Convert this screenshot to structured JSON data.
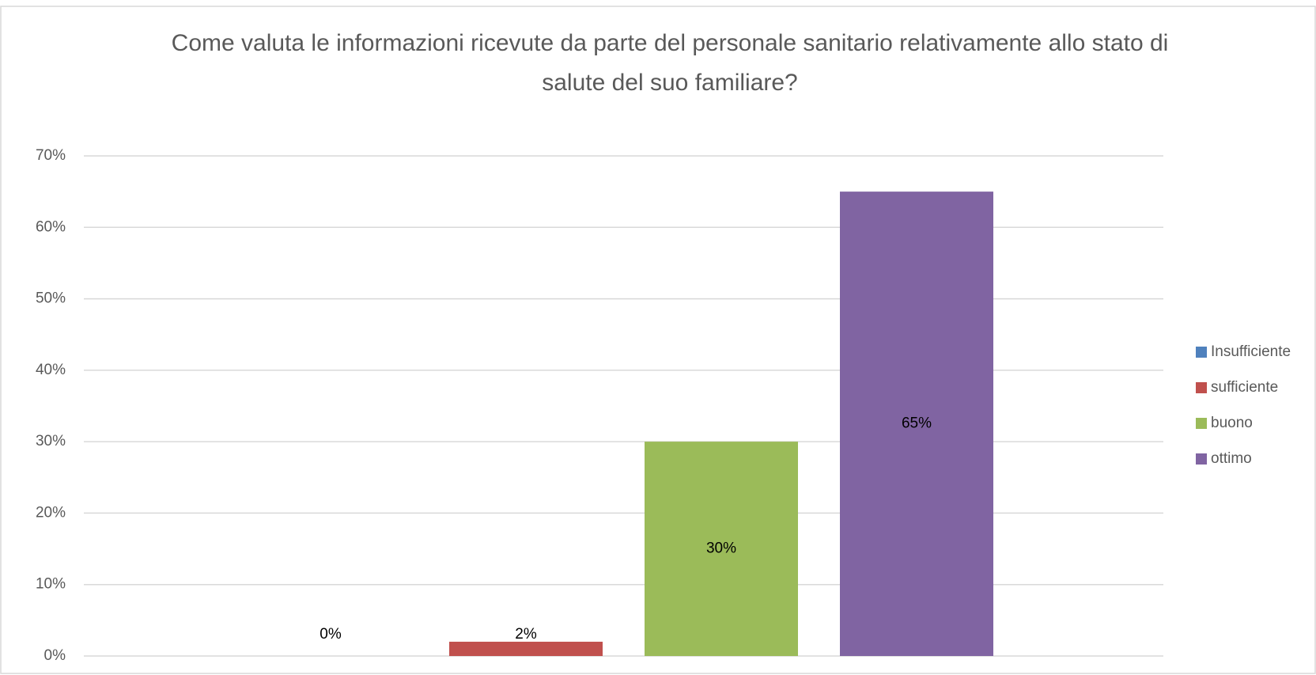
{
  "chart_data": {
    "type": "bar",
    "title": "Come valuta le informazioni ricevute da parte del personale sanitario relativamente allo stato di salute del suo familiare?",
    "series": [
      {
        "name": "Insufficiente",
        "color": "#4f81bd",
        "values": [
          0
        ],
        "value_labels": [
          "0%"
        ]
      },
      {
        "name": "sufficiente",
        "color": "#c0504d",
        "values": [
          2
        ],
        "value_labels": [
          "2%"
        ]
      },
      {
        "name": "buono",
        "color": "#9bbb59",
        "values": [
          30
        ],
        "value_labels": [
          "30%"
        ]
      },
      {
        "name": "ottimo",
        "color": "#8064a2",
        "values": [
          65
        ],
        "value_labels": [
          "65%"
        ]
      }
    ],
    "ylim": [
      0,
      70
    ],
    "yticks": [
      {
        "value": 0,
        "label": "0%"
      },
      {
        "value": 10,
        "label": "10%"
      },
      {
        "value": 20,
        "label": "20%"
      },
      {
        "value": 30,
        "label": "30%"
      },
      {
        "value": 40,
        "label": "40%"
      },
      {
        "value": 50,
        "label": "50%"
      },
      {
        "value": 60,
        "label": "60%"
      },
      {
        "value": 70,
        "label": "70%"
      }
    ],
    "grid": true,
    "legend": "right"
  }
}
